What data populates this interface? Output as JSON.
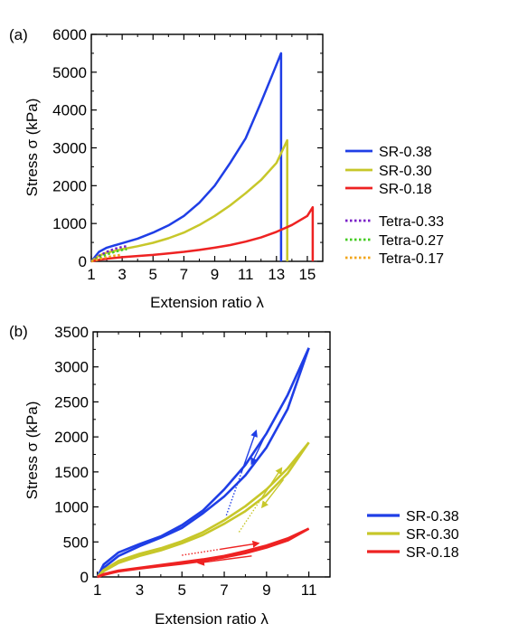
{
  "panels": {
    "a": {
      "label": "(a)"
    },
    "b": {
      "label": "(b)"
    }
  },
  "colors": {
    "blue": "#1f3ee6",
    "yellow": "#c7c72a",
    "red": "#ee2222",
    "purple": "#7a1fc8",
    "green": "#44cc22",
    "orange": "#f2a51a"
  },
  "chart_data": [
    {
      "type": "line",
      "panel": "(a)",
      "xlabel": "Extension ratio λ",
      "ylabel": "Stress σ (kPa)",
      "xlim": [
        1,
        16
      ],
      "ylim": [
        0,
        6000
      ],
      "xticks": [
        1,
        3,
        5,
        7,
        9,
        11,
        13,
        15
      ],
      "yticks": [
        0,
        1000,
        2000,
        3000,
        4000,
        5000,
        6000
      ],
      "grid": false,
      "legend_position": "right",
      "series": [
        {
          "name": "SR-0.38",
          "color": "#1f3ee6",
          "style": "solid",
          "x": [
            1,
            1.5,
            2,
            3,
            4,
            5,
            6,
            7,
            8,
            9,
            10,
            11,
            12,
            12.8,
            13.3,
            13.3
          ],
          "y": [
            0,
            250,
            360,
            480,
            600,
            760,
            950,
            1200,
            1550,
            2000,
            2600,
            3250,
            4200,
            5000,
            5500,
            0
          ]
        },
        {
          "name": "SR-0.30",
          "color": "#c7c72a",
          "style": "solid",
          "x": [
            1,
            1.5,
            2,
            3,
            4,
            5,
            6,
            7,
            8,
            9,
            10,
            11,
            12,
            13,
            13.7,
            13.7
          ],
          "y": [
            0,
            150,
            230,
            320,
            400,
            490,
            610,
            760,
            960,
            1200,
            1480,
            1800,
            2150,
            2600,
            3200,
            0
          ]
        },
        {
          "name": "SR-0.18",
          "color": "#ee2222",
          "style": "solid",
          "x": [
            1,
            1.5,
            2,
            3,
            4,
            5,
            6,
            7,
            8,
            9,
            10,
            11,
            12,
            13,
            14,
            15,
            15.35,
            15.35
          ],
          "y": [
            0,
            40,
            70,
            110,
            140,
            170,
            210,
            250,
            300,
            360,
            430,
            520,
            630,
            780,
            960,
            1200,
            1430,
            0
          ]
        },
        {
          "name": "Tetra-0.33",
          "color": "#7a1fc8",
          "style": "dotted",
          "x": [
            1,
            1.5,
            2,
            2.5,
            3,
            3.3
          ],
          "y": [
            0,
            140,
            250,
            330,
            380,
            400
          ]
        },
        {
          "name": "Tetra-0.27",
          "color": "#44cc22",
          "style": "dotted",
          "x": [
            1,
            1.5,
            2,
            2.5,
            3,
            3.3
          ],
          "y": [
            0,
            100,
            180,
            250,
            300,
            320
          ]
        },
        {
          "name": "Tetra-0.17",
          "color": "#f2a51a",
          "style": "dotted",
          "x": [
            1,
            1.5,
            2,
            2.5,
            2.9
          ],
          "y": [
            0,
            60,
            110,
            150,
            170
          ]
        }
      ]
    },
    {
      "type": "line",
      "panel": "(b)",
      "xlabel": "Extension ratio λ",
      "ylabel": "Stress σ (kPa)",
      "xlim": [
        0.8,
        12
      ],
      "ylim": [
        0,
        3500
      ],
      "xticks": [
        1,
        3,
        5,
        7,
        9,
        11
      ],
      "yticks": [
        0,
        500,
        1000,
        1500,
        2000,
        2500,
        3000,
        3500
      ],
      "grid": false,
      "legend_position": "right",
      "series": [
        {
          "name": "SR-0.38",
          "color": "#1f3ee6",
          "loading": {
            "x": [
              1,
              1.3,
              2,
              3,
              4,
              5,
              6,
              7,
              8,
              9,
              10,
              11
            ],
            "y": [
              0,
              180,
              350,
              470,
              580,
              740,
              950,
              1250,
              1600,
              2050,
              2600,
              3270
            ]
          },
          "unloading": {
            "x": [
              11,
              10,
              9,
              8,
              7,
              6,
              5,
              4,
              3,
              2,
              1.3,
              1
            ],
            "y": [
              3270,
              2400,
              1850,
              1450,
              1150,
              910,
              700,
              560,
              440,
              300,
              130,
              0
            ]
          }
        },
        {
          "name": "SR-0.30",
          "color": "#c7c72a",
          "loading": {
            "x": [
              1,
              1.3,
              2,
              3,
              4,
              5,
              6,
              7,
              8,
              9,
              10,
              11
            ],
            "y": [
              0,
              100,
              230,
              330,
              410,
              510,
              640,
              810,
              1010,
              1250,
              1550,
              1920
            ]
          },
          "unloading": {
            "x": [
              11,
              10,
              9,
              8,
              7,
              6,
              5,
              4,
              3,
              2,
              1.3,
              1
            ],
            "y": [
              1920,
              1480,
              1170,
              940,
              760,
              600,
              480,
              380,
              300,
              200,
              80,
              0
            ]
          }
        },
        {
          "name": "SR-0.18",
          "color": "#ee2222",
          "loading": {
            "x": [
              1,
              1.3,
              2,
              3,
              4,
              5,
              6,
              7,
              8,
              9,
              10,
              11
            ],
            "y": [
              0,
              40,
              90,
              130,
              170,
              210,
              250,
              300,
              370,
              450,
              550,
              690
            ]
          },
          "unloading": {
            "x": [
              11,
              10,
              9,
              8,
              7,
              6,
              5,
              4,
              3,
              2,
              1.3,
              1
            ],
            "y": [
              690,
              520,
              420,
              340,
              280,
              230,
              190,
              155,
              120,
              80,
              30,
              0
            ]
          }
        }
      ],
      "annotations": [
        {
          "series": "SR-0.38",
          "kind": "dotted-then-solid-arrow",
          "from": [
            7.1,
            880
          ],
          "to": [
            8.5,
            2080
          ]
        },
        {
          "series": "SR-0.38",
          "kind": "solid-arrow",
          "from": [
            9.0,
            2060
          ],
          "to": [
            8.3,
            1620
          ]
        },
        {
          "series": "SR-0.30",
          "kind": "dotted-then-solid-arrow",
          "from": [
            7.7,
            640
          ],
          "to": [
            9.7,
            1550
          ]
        },
        {
          "series": "SR-0.30",
          "kind": "solid-arrow",
          "from": [
            9.8,
            1390
          ],
          "to": [
            8.8,
            1000
          ]
        },
        {
          "series": "SR-0.18",
          "kind": "dotted-then-solid-arrow",
          "from": [
            5.0,
            310
          ],
          "to": [
            8.6,
            480
          ]
        },
        {
          "series": "SR-0.18",
          "kind": "solid-arrow",
          "from": [
            8.3,
            300
          ],
          "to": [
            5.8,
            200
          ]
        }
      ]
    }
  ]
}
